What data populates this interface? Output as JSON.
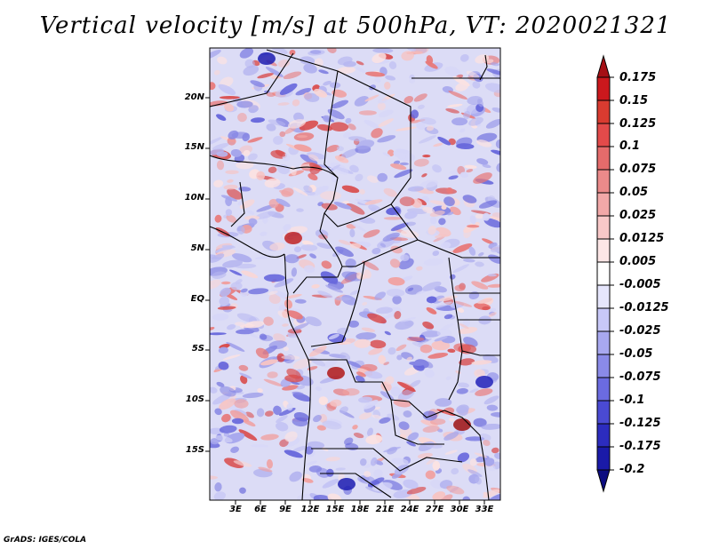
{
  "title": "Vertical velocity [m/s] at 500hPa, VT: 2020021321",
  "footer": "GrADS: IGES/COLA",
  "lat_labels": [
    "20N",
    "15N",
    "10N",
    "5N",
    "EQ",
    "5S",
    "10S",
    "15S"
  ],
  "lon_labels": [
    "3E",
    "6E",
    "9E",
    "12E",
    "15E",
    "18E",
    "21E",
    "24E",
    "27E",
    "30E",
    "33E"
  ],
  "colorbar": {
    "labels": [
      "0.175",
      "0.15",
      "0.125",
      "0.1",
      "0.075",
      "0.05",
      "0.025",
      "0.0125",
      "0.005",
      "-0.005",
      "-0.0125",
      "-0.025",
      "-0.05",
      "-0.075",
      "-0.1",
      "-0.125",
      "-0.175",
      "-0.2"
    ],
    "colors": [
      "#a50f15",
      "#cb181d",
      "#d93b30",
      "#e34a4a",
      "#e56b6b",
      "#eb8a8a",
      "#f2a8a8",
      "#f8c8c8",
      "#fce6e6",
      "#ffffff",
      "#e6e6fc",
      "#c8c8f8",
      "#a8a8f0",
      "#8a8ae8",
      "#6b6be0",
      "#4a4ad3",
      "#2c2cbf",
      "#1a1aa8",
      "#0c0c80"
    ]
  },
  "colors": {
    "positive": "#d62728",
    "negative": "#3838d0",
    "border": "#000000"
  }
}
